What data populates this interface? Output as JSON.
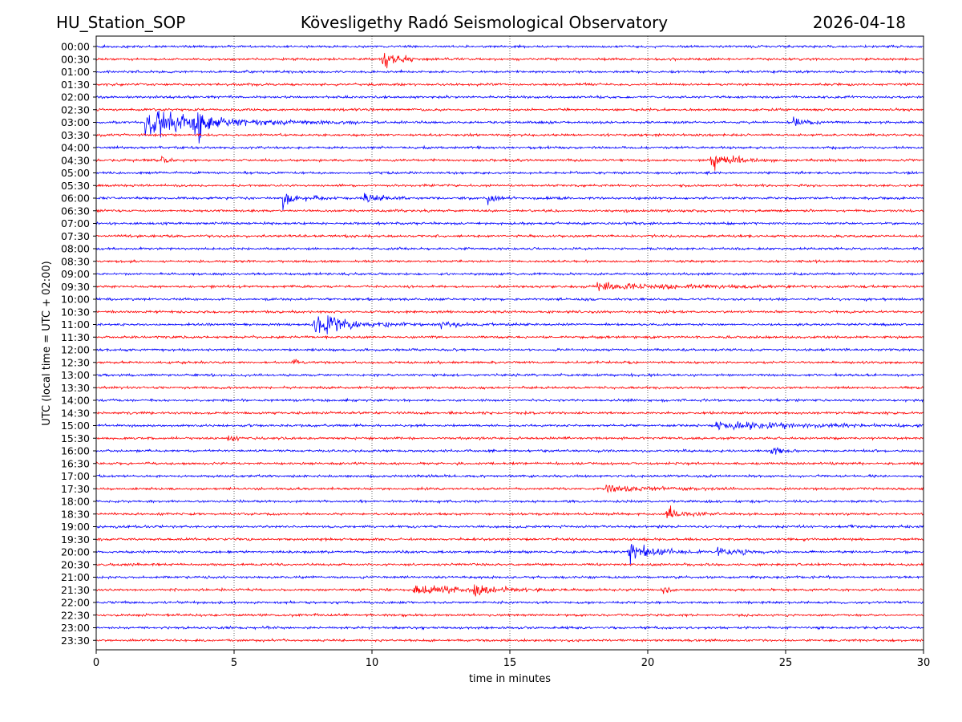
{
  "chart_data": {
    "type": "line",
    "header": {
      "station": "HU_Station_SOP",
      "title": "Kövesligethy Radó Seismological Observatory",
      "date": "2026-04-18"
    },
    "xlabel": "time in minutes",
    "ylabel": "UTC (local time = UTC + 02:00)",
    "xlim": [
      0,
      30
    ],
    "x_ticks": [
      0,
      5,
      10,
      15,
      20,
      25,
      30
    ],
    "grid": "vertical dotted lines at 5, 10, 15, 20, 25",
    "colors": {
      "even": "#0000ff",
      "odd": "#ff0000",
      "grid": "#000000",
      "axis": "#000000"
    },
    "rows": [
      {
        "label": "00:00",
        "events": []
      },
      {
        "label": "00:30",
        "events": [
          {
            "t": 10.4,
            "amp": 10,
            "dur": 1.2
          }
        ]
      },
      {
        "label": "01:00",
        "events": []
      },
      {
        "label": "01:30",
        "events": []
      },
      {
        "label": "02:00",
        "events": []
      },
      {
        "label": "02:30",
        "events": []
      },
      {
        "label": "03:00",
        "events": [
          {
            "t": 1.8,
            "amp": 18,
            "dur": 4.5
          },
          {
            "t": 3.6,
            "amp": 30,
            "dur": 0.5
          },
          {
            "t": 25.3,
            "amp": 6,
            "dur": 0.8
          }
        ]
      },
      {
        "label": "03:30",
        "events": []
      },
      {
        "label": "04:00",
        "events": []
      },
      {
        "label": "04:30",
        "events": [
          {
            "t": 2.4,
            "amp": 7,
            "dur": 0.4
          },
          {
            "t": 22.3,
            "amp": 9,
            "dur": 1.5
          }
        ]
      },
      {
        "label": "05:00",
        "events": []
      },
      {
        "label": "05:30",
        "events": []
      },
      {
        "label": "06:00",
        "events": [
          {
            "t": 6.8,
            "amp": 9,
            "dur": 1.2
          },
          {
            "t": 9.7,
            "amp": 7,
            "dur": 1.2
          },
          {
            "t": 14.2,
            "amp": 5,
            "dur": 0.6
          }
        ]
      },
      {
        "label": "06:30",
        "events": []
      },
      {
        "label": "07:00",
        "events": []
      },
      {
        "label": "07:30",
        "events": []
      },
      {
        "label": "08:00",
        "events": []
      },
      {
        "label": "08:30",
        "events": []
      },
      {
        "label": "09:00",
        "events": []
      },
      {
        "label": "09:30",
        "events": [
          {
            "t": 18.2,
            "amp": 5,
            "dur": 5.5
          }
        ]
      },
      {
        "label": "10:00",
        "events": []
      },
      {
        "label": "10:30",
        "events": []
      },
      {
        "label": "11:00",
        "events": [
          {
            "t": 7.9,
            "amp": 12,
            "dur": 2.5
          },
          {
            "t": 8.7,
            "amp": 18,
            "dur": 0.4
          },
          {
            "t": 12.5,
            "amp": 4,
            "dur": 1.5
          }
        ]
      },
      {
        "label": "11:30",
        "events": []
      },
      {
        "label": "12:00",
        "events": []
      },
      {
        "label": "12:30",
        "events": [
          {
            "t": 7.1,
            "amp": 5,
            "dur": 0.3
          }
        ]
      },
      {
        "label": "13:00",
        "events": []
      },
      {
        "label": "13:30",
        "events": []
      },
      {
        "label": "14:00",
        "events": []
      },
      {
        "label": "14:30",
        "events": []
      },
      {
        "label": "15:00",
        "events": [
          {
            "t": 22.5,
            "amp": 4,
            "dur": 7.0
          }
        ]
      },
      {
        "label": "15:30",
        "events": [
          {
            "t": 4.8,
            "amp": 5,
            "dur": 0.5
          }
        ]
      },
      {
        "label": "16:00",
        "events": [
          {
            "t": 24.5,
            "amp": 5,
            "dur": 0.6
          }
        ]
      },
      {
        "label": "16:30",
        "events": []
      },
      {
        "label": "17:00",
        "events": []
      },
      {
        "label": "17:30",
        "events": [
          {
            "t": 18.5,
            "amp": 4,
            "dur": 3.5
          }
        ]
      },
      {
        "label": "18:00",
        "events": []
      },
      {
        "label": "18:30",
        "events": [
          {
            "t": 20.7,
            "amp": 8,
            "dur": 1.2
          }
        ]
      },
      {
        "label": "19:00",
        "events": []
      },
      {
        "label": "19:30",
        "events": []
      },
      {
        "label": "20:00",
        "events": [
          {
            "t": 19.3,
            "amp": 10,
            "dur": 2.0
          },
          {
            "t": 22.5,
            "amp": 5,
            "dur": 1.8
          }
        ]
      },
      {
        "label": "20:30",
        "events": []
      },
      {
        "label": "21:00",
        "events": []
      },
      {
        "label": "21:30",
        "events": [
          {
            "t": 11.5,
            "amp": 5,
            "dur": 4.5
          },
          {
            "t": 13.7,
            "amp": 7,
            "dur": 1.0
          },
          {
            "t": 20.5,
            "amp": 4,
            "dur": 0.5
          }
        ]
      },
      {
        "label": "22:00",
        "events": []
      },
      {
        "label": "22:30",
        "events": []
      },
      {
        "label": "23:00",
        "events": []
      },
      {
        "label": "23:30",
        "events": []
      }
    ]
  }
}
